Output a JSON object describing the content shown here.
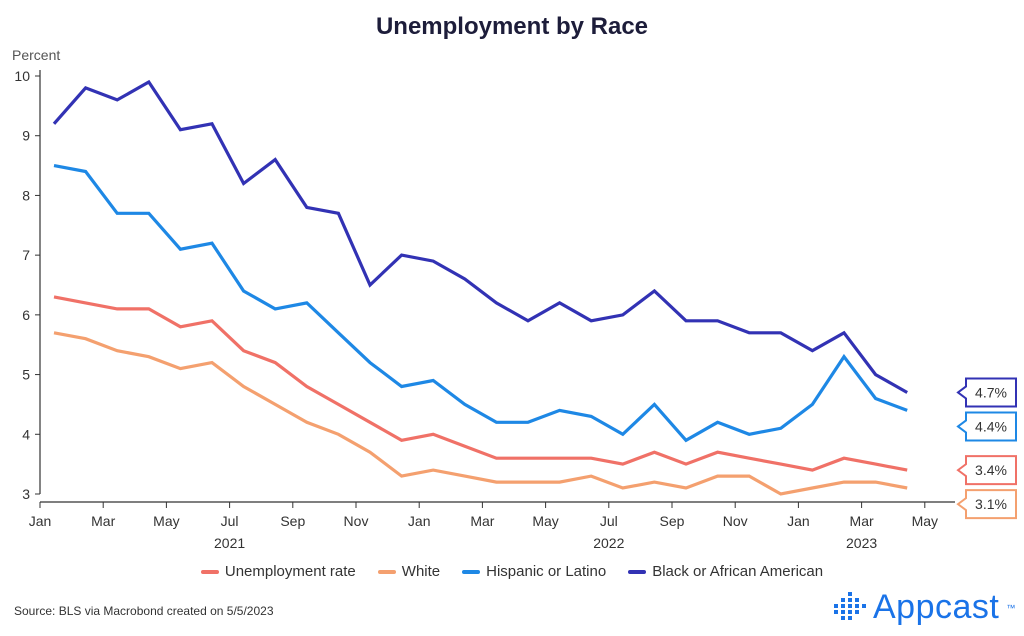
{
  "chart_data": {
    "type": "line",
    "title": "Unemployment by Race",
    "ylabel": "Percent",
    "ylim": [
      3,
      10
    ],
    "yticks": [
      "3",
      "4",
      "5",
      "6",
      "7",
      "8",
      "9",
      "10"
    ],
    "xticks": [
      {
        "label": "Jan",
        "month": 0
      },
      {
        "label": "Mar",
        "month": 2
      },
      {
        "label": "May",
        "month": 4
      },
      {
        "label": "Jul",
        "month": 6
      },
      {
        "label": "Sep",
        "month": 8
      },
      {
        "label": "Nov",
        "month": 10
      },
      {
        "label": "Jan",
        "month": 12
      },
      {
        "label": "Mar",
        "month": 14
      },
      {
        "label": "May",
        "month": 16
      },
      {
        "label": "Jul",
        "month": 18
      },
      {
        "label": "Sep",
        "month": 20
      },
      {
        "label": "Nov",
        "month": 22
      },
      {
        "label": "Jan",
        "month": 24
      },
      {
        "label": "Mar",
        "month": 26
      },
      {
        "label": "May",
        "month": 28
      }
    ],
    "year_labels": [
      {
        "label": "2021",
        "month": 6
      },
      {
        "label": "2022",
        "month": 18
      },
      {
        "label": "2023",
        "month": 26
      }
    ],
    "x": [
      0,
      1,
      2,
      3,
      4,
      5,
      6,
      7,
      8,
      9,
      10,
      11,
      12,
      13,
      14,
      15,
      16,
      17,
      18,
      19,
      20,
      21,
      22,
      23,
      24,
      25,
      26,
      27
    ],
    "x_label_note": "monthly values, Jan 2021 through Apr 2023",
    "series": [
      {
        "name": "Unemployment rate",
        "color": "#f07167",
        "end_label": "3.4%",
        "values": [
          6.3,
          6.2,
          6.1,
          6.1,
          5.8,
          5.9,
          5.4,
          5.2,
          4.8,
          4.5,
          4.2,
          3.9,
          4.0,
          3.8,
          3.6,
          3.6,
          3.6,
          3.6,
          3.5,
          3.7,
          3.5,
          3.7,
          3.6,
          3.5,
          3.4,
          3.6,
          3.5,
          3.4
        ]
      },
      {
        "name": "White",
        "color": "#f4a06f",
        "end_label": "3.1%",
        "values": [
          5.7,
          5.6,
          5.4,
          5.3,
          5.1,
          5.2,
          4.8,
          4.5,
          4.2,
          4.0,
          3.7,
          3.3,
          3.4,
          3.3,
          3.2,
          3.2,
          3.2,
          3.3,
          3.1,
          3.2,
          3.1,
          3.3,
          3.3,
          3.0,
          3.1,
          3.2,
          3.2,
          3.1
        ]
      },
      {
        "name": "Hispanic or Latino",
        "color": "#1e88e5",
        "end_label": "4.4%",
        "values": [
          8.5,
          8.4,
          7.7,
          7.7,
          7.1,
          7.2,
          6.4,
          6.1,
          6.2,
          5.7,
          5.2,
          4.8,
          4.9,
          4.5,
          4.2,
          4.2,
          4.4,
          4.3,
          4.0,
          4.5,
          3.9,
          4.2,
          4.0,
          4.1,
          4.5,
          5.3,
          4.6,
          4.4
        ]
      },
      {
        "name": "Black or African American",
        "color": "#3232b4",
        "end_label": "4.7%",
        "values": [
          9.2,
          9.8,
          9.6,
          9.9,
          9.1,
          9.2,
          8.2,
          8.6,
          7.8,
          7.7,
          6.5,
          7.0,
          6.9,
          6.6,
          6.2,
          5.9,
          6.2,
          5.9,
          6.0,
          6.4,
          5.9,
          5.9,
          5.7,
          5.7,
          5.4,
          5.7,
          5.0,
          4.7
        ]
      }
    ]
  },
  "legend_order": [
    0,
    1,
    2,
    3
  ],
  "footer": {
    "source": "Source: BLS via Macrobond created on 5/5/2023",
    "logo_text": "Appcast",
    "logo_tm": "™"
  }
}
